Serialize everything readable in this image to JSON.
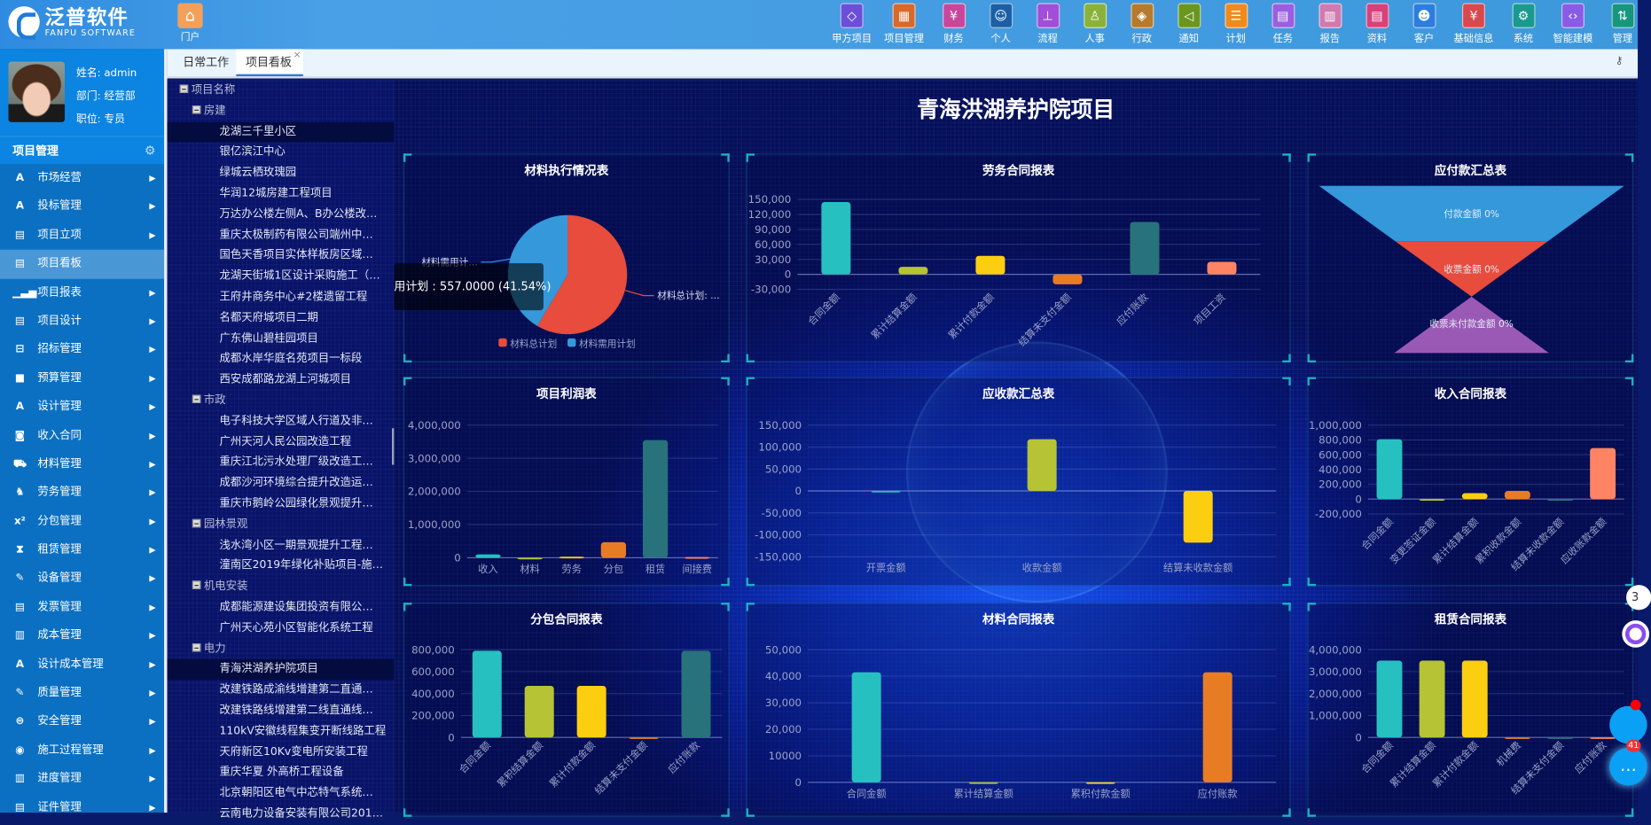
{
  "header": {
    "logo_cn": "泛普软件",
    "logo_en": "FANPU SOFTWARE",
    "portal": "门户",
    "nav": [
      {
        "label": "甲方项目",
        "color": "#6b4fd8",
        "icon": "grid-diamond-icon",
        "glyph": "◇"
      },
      {
        "label": "项目管理",
        "color": "#d9682b",
        "icon": "grid-icon",
        "glyph": "▦"
      },
      {
        "label": "财务",
        "color": "#c9469b",
        "icon": "yuan-icon",
        "glyph": "¥"
      },
      {
        "label": "个人",
        "color": "#1b5fa6",
        "icon": "person-icon",
        "glyph": "☺"
      },
      {
        "label": "流程",
        "color": "#a14ed9",
        "icon": "flow-icon",
        "glyph": "⊥"
      },
      {
        "label": "人事",
        "color": "#8ab23b",
        "icon": "user-icon",
        "glyph": "♙"
      },
      {
        "label": "行政",
        "color": "#b67a2c",
        "icon": "layers-icon",
        "glyph": "◈"
      },
      {
        "label": "通知",
        "color": "#6a961e",
        "icon": "speaker-icon",
        "glyph": "◁"
      },
      {
        "label": "计划",
        "color": "#f08a1c",
        "icon": "sliders-icon",
        "glyph": "☰"
      },
      {
        "label": "任务",
        "color": "#9a5fe0",
        "icon": "task-icon",
        "glyph": "▤"
      },
      {
        "label": "报告",
        "color": "#d07ab0",
        "icon": "report-icon",
        "glyph": "▥"
      },
      {
        "label": "资料",
        "color": "#d9417a",
        "icon": "document-icon",
        "glyph": "▤"
      },
      {
        "label": "客户",
        "color": "#2d7de0",
        "icon": "customer-icon",
        "glyph": "☻"
      },
      {
        "label": "基础信息",
        "color": "#d9484c",
        "icon": "info-yuan-icon",
        "glyph": "¥"
      },
      {
        "label": "系统",
        "color": "#1a9a8e",
        "icon": "gear-icon",
        "glyph": "⚙"
      },
      {
        "label": "智能建模",
        "color": "#8a5be6",
        "icon": "code-icon",
        "glyph": "‹›"
      },
      {
        "label": "管理",
        "color": "#17967e",
        "icon": "sort-icon",
        "glyph": "⇅"
      }
    ]
  },
  "tabs": [
    {
      "label": "日常工作"
    },
    {
      "label": "项目看板",
      "close": "×"
    }
  ],
  "profile": {
    "name": "姓名: admin",
    "dept": "部门: 经营部",
    "title": "职位: 专员"
  },
  "sidebar": {
    "title": "项目管理",
    "items": [
      {
        "label": "市场经营",
        "glyph": "A"
      },
      {
        "label": "投标管理",
        "glyph": "A"
      },
      {
        "label": "项目立项",
        "glyph": "▤"
      },
      {
        "label": "项目看板",
        "glyph": "▤",
        "active": true
      },
      {
        "label": "项目报表",
        "glyph": "▁▃▅"
      },
      {
        "label": "项目设计",
        "glyph": "▤"
      },
      {
        "label": "招标管理",
        "glyph": "⊟"
      },
      {
        "label": "预算管理",
        "glyph": "■"
      },
      {
        "label": "设计管理",
        "glyph": "A"
      },
      {
        "label": "收入合同",
        "glyph": "◙"
      },
      {
        "label": "材料管理",
        "glyph": "⛟"
      },
      {
        "label": "劳务管理",
        "glyph": "♞"
      },
      {
        "label": "分包管理",
        "glyph": "x²"
      },
      {
        "label": "租赁管理",
        "glyph": "⧗"
      },
      {
        "label": "设备管理",
        "glyph": "✎"
      },
      {
        "label": "发票管理",
        "glyph": "▤"
      },
      {
        "label": "成本管理",
        "glyph": "▥"
      },
      {
        "label": "设计成本管理",
        "glyph": "A"
      },
      {
        "label": "质量管理",
        "glyph": "✎"
      },
      {
        "label": "安全管理",
        "glyph": "⊜"
      },
      {
        "label": "施工过程管理",
        "glyph": "◉"
      },
      {
        "label": "进度管理",
        "glyph": "▥"
      },
      {
        "label": "证件管理",
        "glyph": "▤"
      }
    ]
  },
  "tree": {
    "root": "项目名称",
    "groups": [
      {
        "label": "房建",
        "items": [
          "龙湖三千里小区",
          "银亿滨江中心",
          "绿城云栖玫瑰园",
          "华润12城房建工程项目",
          "万达办公楼左侧A、B办公楼改…",
          "重庆太极制药有限公司端州中…",
          "国色天香项目实体样板房区域…",
          "龙湖天街城1区设计采购施工（…",
          "王府井商务中心#2楼遗留工程",
          "名都天府城项目二期",
          "广东佛山碧桂园项目",
          "成都水岸华庭名苑项目一标段",
          "西安成都路龙湖上河城项目"
        ],
        "selected": 0
      },
      {
        "label": "市政",
        "items": [
          "电子科技大学区域人行道及非…",
          "广州天河人民公园改造工程",
          "重庆江北污水处理厂级改造工…",
          "成都沙河环境综合提升改造运…",
          "重庆市鹅岭公园绿化景观提升…"
        ]
      },
      {
        "label": "园林景观",
        "items": [
          "浅水湾小区一期景观提升工程…",
          "潼南区2019年绿化补贴项目-施…"
        ]
      },
      {
        "label": "机电安装",
        "items": [
          "成都能源建设集团投资有限公…",
          "广州天心苑小区智能化系统工程"
        ]
      },
      {
        "label": "电力",
        "items": [
          "青海洪湖养护院项目",
          "改建铁路成渝线增建第二直通…",
          "改建铁路线增建第二线直通线…",
          "110kV安徽线程集变开断线路工程",
          "天府新区10Kv变电所安装工程",
          "重庆华夏 外高桥工程设备",
          "北京朝阳区电气中芯特气系统…",
          "云南电力设备安装有限公司201…"
        ],
        "selected": 0
      }
    ]
  },
  "dashboard": {
    "title": "青海洪湖养护院项目",
    "tooltip": "用计划 : 557.0000 (41.54%)"
  },
  "palette": [
    "#26c0c0",
    "#b5c334",
    "#fcce10",
    "#e87c25",
    "#27727b",
    "#fe8463"
  ],
  "chart_data": [
    {
      "id": "material-exec",
      "type": "pie",
      "title": "材料执行情况表",
      "slices": [
        {
          "name": "材料总计划",
          "value": 784,
          "color": "#e74c3c",
          "label": "材料总计划: …"
        },
        {
          "name": "材料需用计划",
          "value": 557,
          "color": "#3498db",
          "label": "材料需用计…"
        }
      ],
      "legend": [
        "材料总计划",
        "材料需用计划"
      ],
      "legend_position": "bottom"
    },
    {
      "id": "labor-contract",
      "type": "bar",
      "title": "劳务合同报表",
      "categories": [
        "合同金额",
        "累计结算金额",
        "累计付款金额",
        "结算未支付金额",
        "应付账款",
        "项目工资"
      ],
      "values": [
        145000,
        15000,
        37000,
        -20000,
        105000,
        25000
      ],
      "yticks": [
        "150,000",
        "120,000",
        "90,000",
        "60,000",
        "30,000",
        "0",
        "-30,000"
      ],
      "ylim": [
        -30000,
        150000
      ],
      "rotate_labels": true
    },
    {
      "id": "payable-summary",
      "type": "funnel",
      "title": "应付款汇总表",
      "stages": [
        {
          "label": "付款金额 0%",
          "color": "#3498db"
        },
        {
          "label": "收票金额 0%",
          "color": "#e74c3c"
        },
        {
          "label": "收票未付款金额 0%",
          "color": "#9b59b6"
        }
      ]
    },
    {
      "id": "project-profit",
      "type": "bar",
      "title": "项目利润表",
      "categories": [
        "收入",
        "材料",
        "劳务",
        "分包",
        "租赁",
        "间接费"
      ],
      "values": [
        100000,
        0,
        30000,
        470000,
        3550000,
        20000
      ],
      "yticks": [
        "4,000,000",
        "3,000,000",
        "2,000,000",
        "1,000,000",
        "0"
      ],
      "ylim": [
        0,
        4000000
      ],
      "rotate_labels": false
    },
    {
      "id": "receivable-summary",
      "type": "bar",
      "title": "应收款汇总表",
      "categories": [
        "开票金额",
        "收款金额",
        "结算未收款金额"
      ],
      "values": [
        0,
        118000,
        -118000
      ],
      "yticks": [
        "150,000",
        "100,000",
        "50,000",
        "0",
        "-50,000",
        "-100,000",
        "-150,000"
      ],
      "ylim": [
        -150000,
        150000
      ],
      "rotate_labels": false
    },
    {
      "id": "income-contract",
      "type": "bar",
      "title": "收入合同报表",
      "categories": [
        "合同金额",
        "变更签证金额",
        "累计结算金额",
        "累积收款金额",
        "结算未收款金额",
        "应收账款金额"
      ],
      "values": [
        810000,
        0,
        80000,
        110000,
        -15000,
        690000
      ],
      "yticks": [
        "1,000,000",
        "800,000",
        "600,000",
        "400,000",
        "200,000",
        "0",
        "-200,000"
      ],
      "ylim": [
        -200000,
        1000000
      ],
      "rotate_labels": true
    },
    {
      "id": "subcontract",
      "type": "bar",
      "title": "分包合同报表",
      "categories": [
        "合同金额",
        "累积结算金额",
        "累计付款金额",
        "结算未支付金额",
        "应付账款"
      ],
      "values": [
        790000,
        470000,
        470000,
        0,
        790000
      ],
      "yticks": [
        "800,000",
        "600,000",
        "400,000",
        "200,000",
        "0"
      ],
      "ylim": [
        0,
        800000
      ],
      "rotate_labels": true
    },
    {
      "id": "material-contract",
      "type": "bar",
      "title": "材料合同报表",
      "categories": [
        "合同金额",
        "累计结算金额",
        "累积付款金额",
        "应付账款"
      ],
      "values": [
        41500,
        0,
        0,
        41500
      ],
      "yticks": [
        "50,000",
        "40,000",
        "30,000",
        "20,000",
        "10000",
        "0"
      ],
      "ylim": [
        0,
        50000
      ],
      "rotate_labels": false
    },
    {
      "id": "lease-contract",
      "type": "bar",
      "title": "租赁合同报表",
      "categories": [
        "合同金额",
        "累计结算金额",
        "累计付款金额",
        "机械费",
        "结算未支付金额",
        "应付账款"
      ],
      "values": [
        3500000,
        3500000,
        3500000,
        0,
        0,
        0
      ],
      "yticks": [
        "4,000,000",
        "3,000,000",
        "2,000,000",
        "1,000,000",
        "0"
      ],
      "ylim": [
        0,
        4000000
      ],
      "rotate_labels": true
    }
  ],
  "float": {
    "badge": "41",
    "top_label": "3"
  }
}
